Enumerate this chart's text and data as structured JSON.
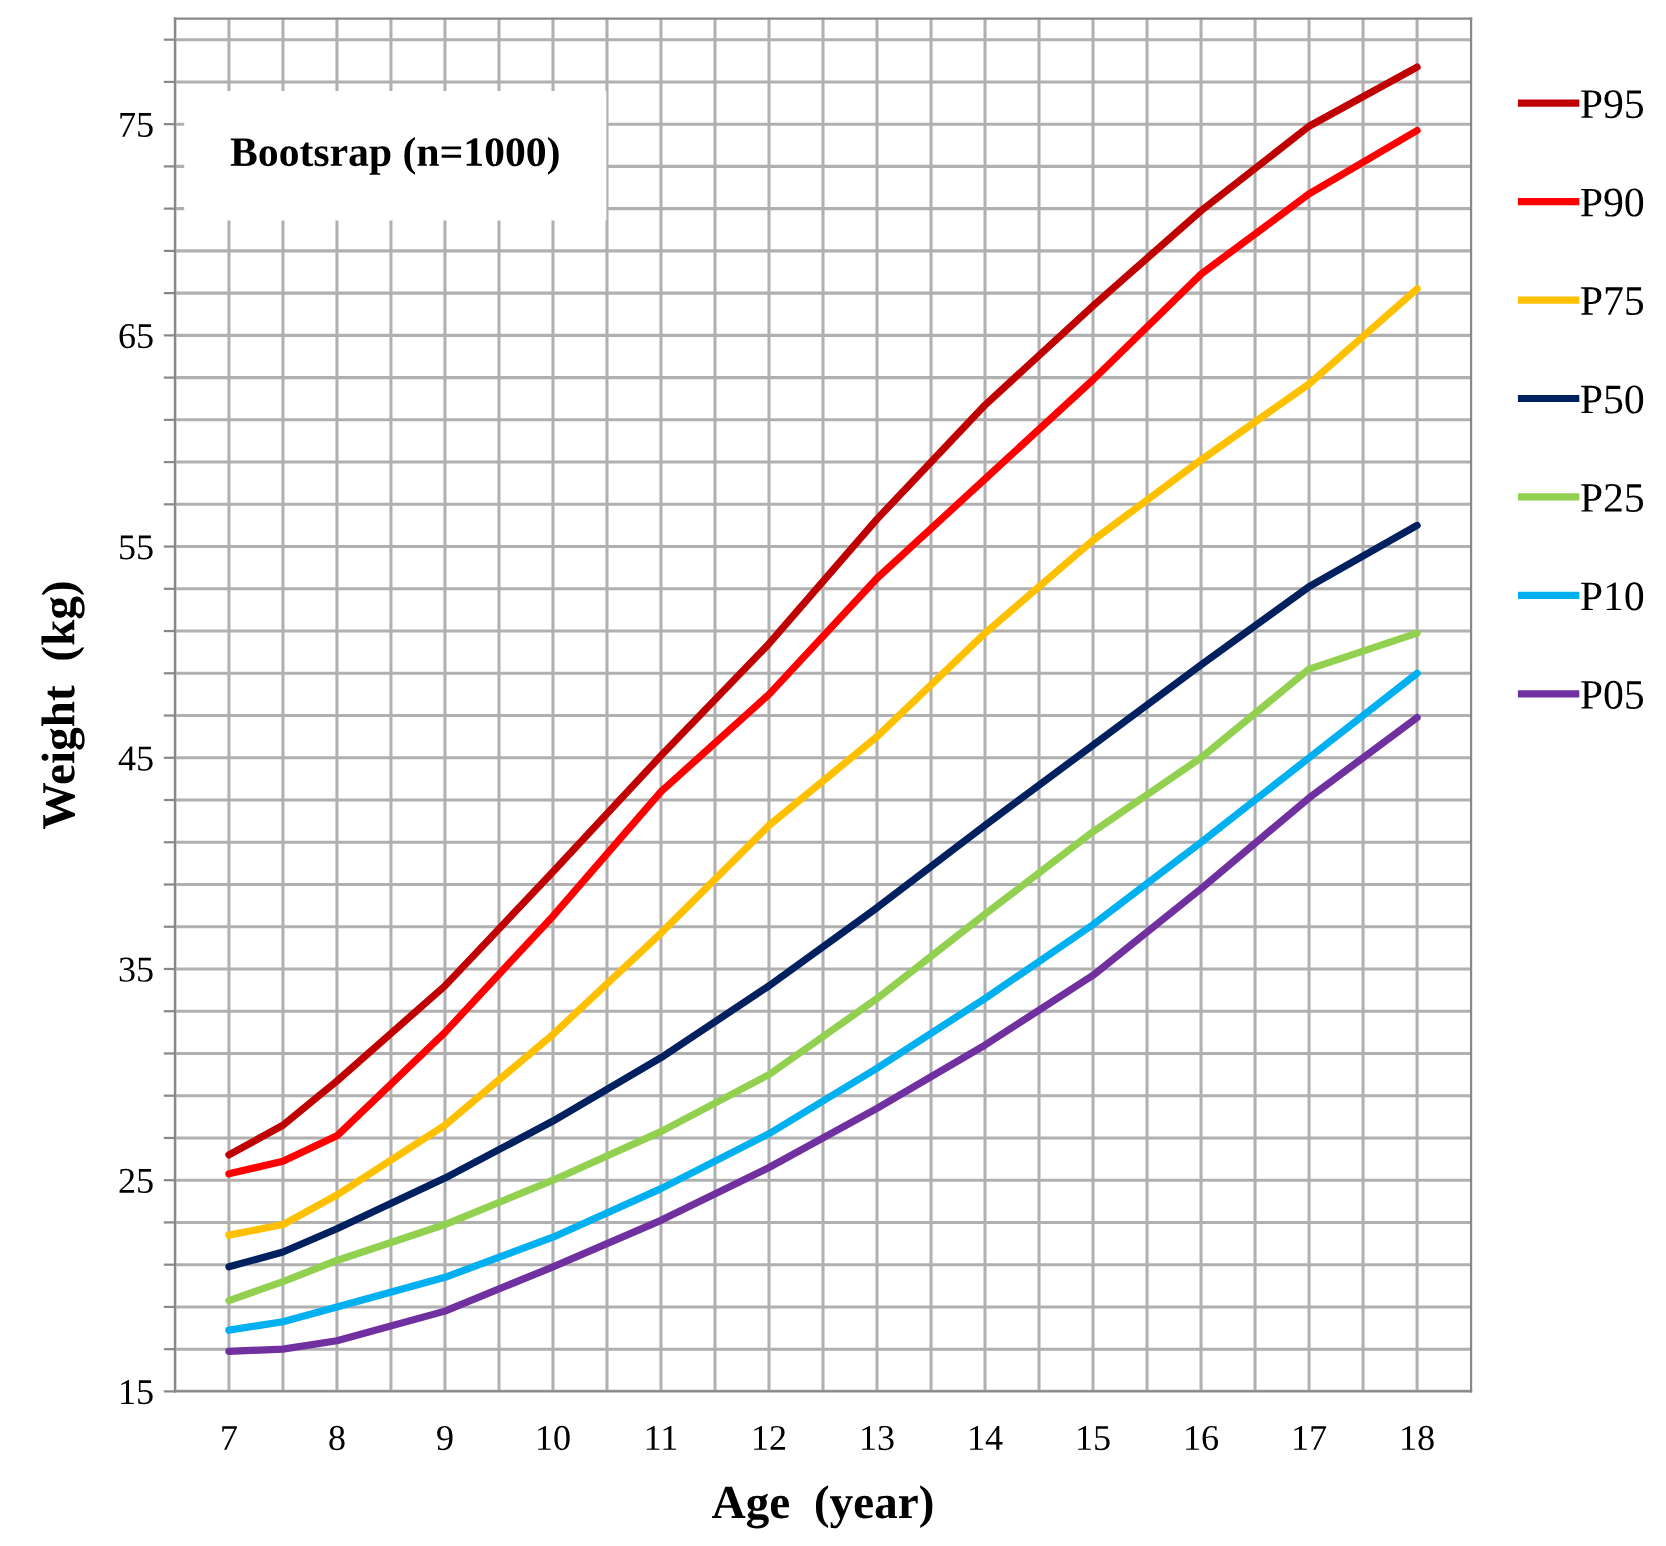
{
  "chart_data": {
    "type": "line",
    "xlabel": "Age  (year)",
    "ylabel": "Weight  (kg)",
    "annotations": [
      "Bootsrap (n=1000)"
    ],
    "x": [
      7,
      7.5,
      8,
      9,
      10,
      11,
      12,
      13,
      14,
      15,
      16,
      17,
      18
    ],
    "series": [
      {
        "name": "P95",
        "color": "#c00000",
        "values": [
          26.2,
          27.6,
          29.7,
          34.2,
          39.6,
          45.1,
          50.4,
          56.3,
          61.7,
          66.4,
          70.9,
          74.9,
          77.7
        ]
      },
      {
        "name": "P90",
        "color": "#ff0000",
        "values": [
          25.3,
          25.9,
          27.1,
          32.0,
          37.5,
          43.4,
          48.0,
          53.5,
          58.2,
          62.9,
          67.9,
          71.7,
          74.7
        ]
      },
      {
        "name": "P75",
        "color": "#ffc000",
        "values": [
          22.4,
          22.9,
          24.3,
          27.6,
          31.9,
          36.7,
          41.8,
          46.0,
          50.9,
          55.3,
          59.1,
          62.7,
          67.2
        ]
      },
      {
        "name": "P50",
        "color": "#002060",
        "values": [
          20.9,
          21.6,
          22.7,
          25.1,
          27.8,
          30.8,
          34.2,
          37.9,
          41.8,
          45.6,
          49.4,
          53.1,
          56.0
        ]
      },
      {
        "name": "P25",
        "color": "#92d050",
        "values": [
          19.3,
          20.2,
          21.2,
          22.9,
          25.0,
          27.3,
          30.0,
          33.6,
          37.6,
          41.5,
          45.0,
          49.2,
          50.9
        ]
      },
      {
        "name": "P10",
        "color": "#00b0f0",
        "values": [
          17.9,
          18.3,
          19.0,
          20.4,
          22.3,
          24.6,
          27.2,
          30.3,
          33.6,
          37.1,
          41.0,
          45.0,
          49.0
        ]
      },
      {
        "name": "P05",
        "color": "#7030a0",
        "values": [
          16.9,
          17.0,
          17.4,
          18.8,
          20.9,
          23.1,
          25.6,
          28.4,
          31.4,
          34.7,
          38.8,
          43.1,
          46.9
        ]
      }
    ],
    "xlim": [
      6.5,
      18.5
    ],
    "xticks": [
      {
        "value": 6.5,
        "label": null
      },
      7,
      {
        "value": 7.5,
        "label": null
      },
      8,
      {
        "value": 8.5,
        "label": null
      },
      9,
      {
        "value": 9.5,
        "label": null
      },
      10,
      {
        "value": 10.5,
        "label": null
      },
      11,
      {
        "value": 11.5,
        "label": null
      },
      12,
      {
        "value": 12.5,
        "label": null
      },
      13,
      {
        "value": 13.5,
        "label": null
      },
      14,
      {
        "value": 14.5,
        "label": null
      },
      15,
      {
        "value": 15.5,
        "label": null
      },
      16,
      {
        "value": 16.5,
        "label": null
      },
      17,
      {
        "value": 17.5,
        "label": null
      },
      18
    ],
    "ylim": [
      15,
      80
    ],
    "yticks": [
      15,
      {
        "value": 17,
        "label": null
      },
      {
        "value": 19,
        "label": null
      },
      {
        "value": 21,
        "label": null
      },
      {
        "value": 23,
        "label": null
      },
      25,
      {
        "value": 27,
        "label": null
      },
      {
        "value": 29,
        "label": null
      },
      {
        "value": 31,
        "label": null
      },
      {
        "value": 33,
        "label": null
      },
      35,
      {
        "value": 37,
        "label": null
      },
      {
        "value": 39,
        "label": null
      },
      {
        "value": 41,
        "label": null
      },
      {
        "value": 43,
        "label": null
      },
      45,
      {
        "value": 47,
        "label": null
      },
      {
        "value": 49,
        "label": null
      },
      {
        "value": 51,
        "label": null
      },
      {
        "value": 53,
        "label": null
      },
      55,
      {
        "value": 57,
        "label": null
      },
      {
        "value": 59,
        "label": null
      },
      {
        "value": 61,
        "label": null
      },
      {
        "value": 63,
        "label": null
      },
      65,
      {
        "value": 67,
        "label": null
      },
      {
        "value": 69,
        "label": null
      },
      {
        "value": 71,
        "label": null
      },
      {
        "value": 73,
        "label": null
      },
      75,
      {
        "value": 77,
        "label": null
      },
      {
        "value": 79,
        "label": null
      }
    ],
    "grid": true,
    "legend": "right",
    "marker": "none",
    "line_style": "solid"
  }
}
